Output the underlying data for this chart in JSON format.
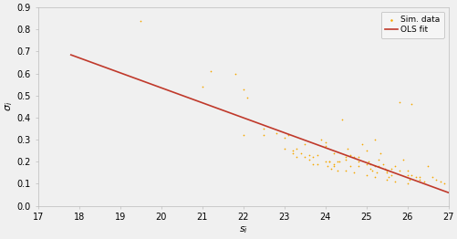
{
  "title": "",
  "xlabel": "s_i",
  "ylabel": "σ_i",
  "xlim": [
    17,
    27
  ],
  "ylim": [
    0,
    0.9
  ],
  "xticks": [
    17,
    18,
    19,
    20,
    21,
    22,
    23,
    24,
    25,
    26,
    27
  ],
  "yticks": [
    0,
    0.1,
    0.2,
    0.3,
    0.4,
    0.5,
    0.6,
    0.7,
    0.8,
    0.9
  ],
  "scatter_color": "#f5a800",
  "line_color": "#c0392b",
  "line_x": [
    17.8,
    27.0
  ],
  "line_y": [
    0.685,
    0.06
  ],
  "scatter_x": [
    19.5,
    21.0,
    21.2,
    21.8,
    22.0,
    22.1,
    22.5,
    22.8,
    23.0,
    23.1,
    23.2,
    23.3,
    23.4,
    23.5,
    23.6,
    23.7,
    23.8,
    23.9,
    24.0,
    24.05,
    24.1,
    24.15,
    24.2,
    24.3,
    24.35,
    24.4,
    24.5,
    24.55,
    24.6,
    24.7,
    24.8,
    24.9,
    25.0,
    25.05,
    25.1,
    25.15,
    25.2,
    25.25,
    25.3,
    25.35,
    25.4,
    25.45,
    25.5,
    25.55,
    25.6,
    25.7,
    25.8,
    25.9,
    26.0,
    26.05,
    26.1,
    26.2,
    26.3,
    26.4,
    26.5,
    26.6,
    26.7,
    26.8,
    26.9,
    24.0,
    24.2,
    24.5,
    24.8,
    25.0,
    25.3,
    25.6,
    23.5,
    23.7,
    24.0,
    24.2,
    24.5,
    24.7,
    25.0,
    25.2,
    25.5,
    25.7,
    26.0,
    22.0,
    22.5,
    23.0,
    23.2,
    23.8,
    24.1,
    24.6,
    25.1,
    25.5,
    26.0,
    26.3,
    23.3,
    23.6,
    24.3,
    24.8,
    25.2,
    25.8,
    26.1
  ],
  "scatter_y": [
    0.84,
    0.54,
    0.61,
    0.6,
    0.53,
    0.49,
    0.35,
    0.33,
    0.31,
    0.32,
    0.25,
    0.26,
    0.24,
    0.22,
    0.21,
    0.19,
    0.23,
    0.3,
    0.27,
    0.18,
    0.2,
    0.17,
    0.19,
    0.16,
    0.2,
    0.39,
    0.21,
    0.26,
    0.23,
    0.22,
    0.18,
    0.28,
    0.25,
    0.2,
    0.19,
    0.16,
    0.18,
    0.15,
    0.21,
    0.24,
    0.19,
    0.17,
    0.16,
    0.13,
    0.14,
    0.18,
    0.16,
    0.21,
    0.16,
    0.12,
    0.14,
    0.13,
    0.12,
    0.11,
    0.18,
    0.13,
    0.12,
    0.11,
    0.1,
    0.29,
    0.24,
    0.22,
    0.2,
    0.19,
    0.18,
    0.17,
    0.28,
    0.22,
    0.2,
    0.18,
    0.16,
    0.15,
    0.14,
    0.13,
    0.12,
    0.11,
    0.1,
    0.32,
    0.32,
    0.26,
    0.24,
    0.19,
    0.2,
    0.18,
    0.17,
    0.15,
    0.14,
    0.13,
    0.22,
    0.23,
    0.2,
    0.22,
    0.3,
    0.47,
    0.46
  ],
  "legend_scatter_label": "Sim. data",
  "legend_line_label": "OLS fit",
  "figsize": [
    5.02,
    2.62
  ],
  "dpi": 100,
  "background_color": "#f0f0f0",
  "plot_bg_color": "#f0f0f0",
  "scatter_size": 6,
  "scatter_marker": ".",
  "line_width": 1.2,
  "spine_color": "#bbbbbb",
  "tick_color": "#888888",
  "label_color": "#555555"
}
